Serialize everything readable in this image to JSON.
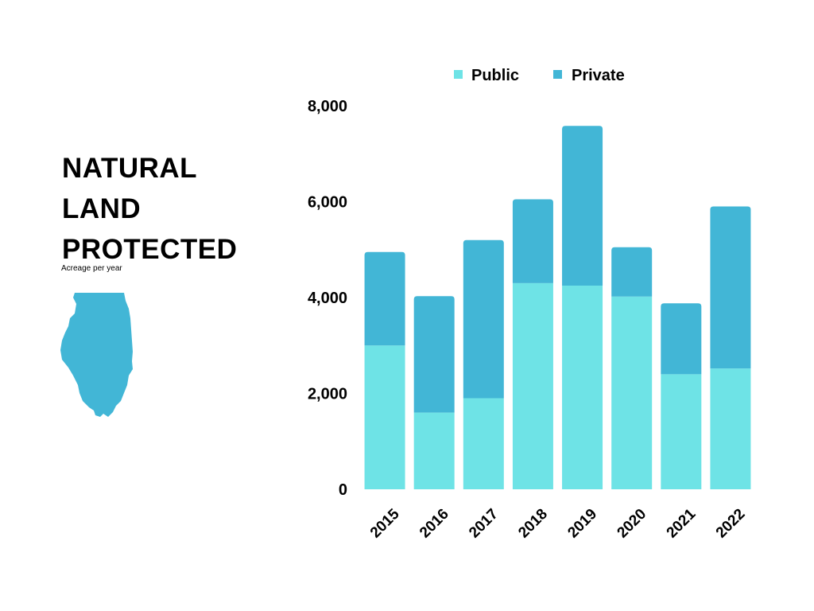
{
  "title": [
    "NATURAL",
    "LAND",
    "PROTECTED"
  ],
  "subtitle": "Acreage per year",
  "map_icon": "illinois-state-silhouette",
  "colors": {
    "public": "#6ee3e6",
    "private": "#42b6d6",
    "map": "#42b6d6"
  },
  "chart_data": {
    "type": "bar",
    "stacked": true,
    "categories": [
      "2015",
      "2016",
      "2017",
      "2018",
      "2019",
      "2020",
      "2021",
      "2022"
    ],
    "series": [
      {
        "name": "Public",
        "values": [
          3000,
          1600,
          1900,
          4300,
          4250,
          4020,
          2400,
          2520
        ]
      },
      {
        "name": "Private",
        "values": [
          1950,
          2430,
          3300,
          1750,
          3330,
          1030,
          1480,
          3380
        ]
      }
    ],
    "ylim": [
      0,
      8000
    ],
    "yticks": [
      0,
      2000,
      4000,
      6000,
      8000
    ],
    "ytick_labels": [
      "0",
      "2,000",
      "4,000",
      "6,000",
      "8,000"
    ],
    "xlabel": "",
    "ylabel": "",
    "grid": false,
    "legend": "top"
  }
}
